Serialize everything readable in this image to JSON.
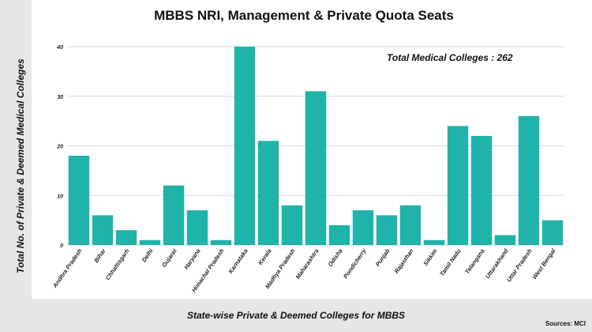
{
  "chart_data": {
    "type": "bar",
    "title": "MBBS NRI, Management & Private Quota Seats",
    "xlabel": "State-wise Private & Deemed Colleges for MBBS",
    "ylabel": "Total No. of Private & Deemed Medical Colleges",
    "annotation": "Total Medical Colleges : 262",
    "source": "Sources: MCI",
    "categories": [
      "Andhra Pradesh",
      "Bihar",
      "Chhattisgarh",
      "Delhi",
      "Gujarat",
      "Haryana",
      "Himachal Pradesh",
      "Karnataka",
      "Kerala",
      "Madhya Pradesh",
      "Maharashtra",
      "Odisha",
      "Pondicherry",
      "Punjab",
      "Rajasthan",
      "Sikkim",
      "Tamil Nadu",
      "Telangana",
      "Uttarakhand",
      "Uttar Pradesh",
      "West Bengal"
    ],
    "values": [
      18,
      6,
      3,
      1,
      12,
      7,
      1,
      40,
      21,
      8,
      31,
      4,
      7,
      6,
      8,
      1,
      24,
      22,
      2,
      26,
      5
    ],
    "ylim": [
      0,
      40
    ],
    "yticks": [
      0,
      10,
      20,
      30,
      40
    ],
    "grid": true,
    "legend": false,
    "bar_color": "#1fb3aa"
  }
}
